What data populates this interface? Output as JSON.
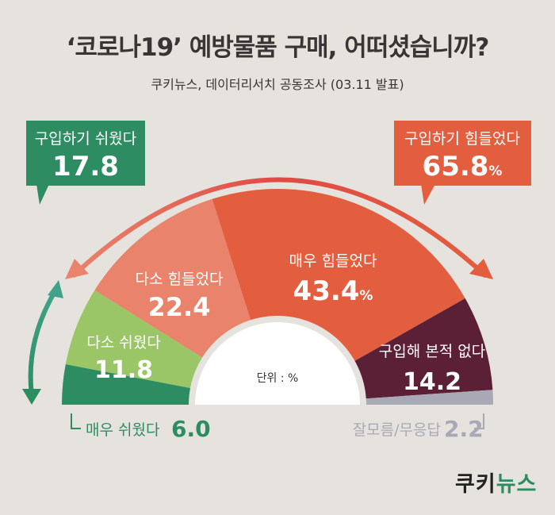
{
  "header": {
    "title": "‘코로나19’ 예방물품 구매, 어떠셨습니까?",
    "subtitle": "쿠키뉴스, 데이터리서치 공동조사 (03.11 발표)"
  },
  "chart_data": {
    "type": "pie",
    "categories": [
      "매우 쉬웠다",
      "다소 쉬웠다",
      "다소 힘들었다",
      "매우 힘들었다",
      "구입해 본적 없다",
      "잘모름/무응답"
    ],
    "values": [
      6.0,
      11.8,
      22.4,
      43.4,
      14.2,
      2.2
    ],
    "value_labels": [
      "6.0",
      "11.8",
      "22.4",
      "43.4",
      "14.2",
      "2.2"
    ],
    "value_units": [
      "",
      "",
      "",
      "%",
      "",
      ""
    ],
    "colors": [
      "#2e8c63",
      "#9ac667",
      "#e9836b",
      "#e35e3e",
      "#5c2036",
      "#a9a9b5"
    ],
    "groups": [
      {
        "label": "구입하기 쉬웠다",
        "value": "17.8",
        "unit": "",
        "color": "#2e8c63"
      },
      {
        "label": "구입하기 힘들었다",
        "value": "65.8",
        "unit": "%",
        "color": "#e35e3e"
      }
    ],
    "unit_note": "단위 : %",
    "shape": "semicircle-donut"
  },
  "brand": {
    "logo_main": "쿠키",
    "logo_accent": "뉴스"
  }
}
